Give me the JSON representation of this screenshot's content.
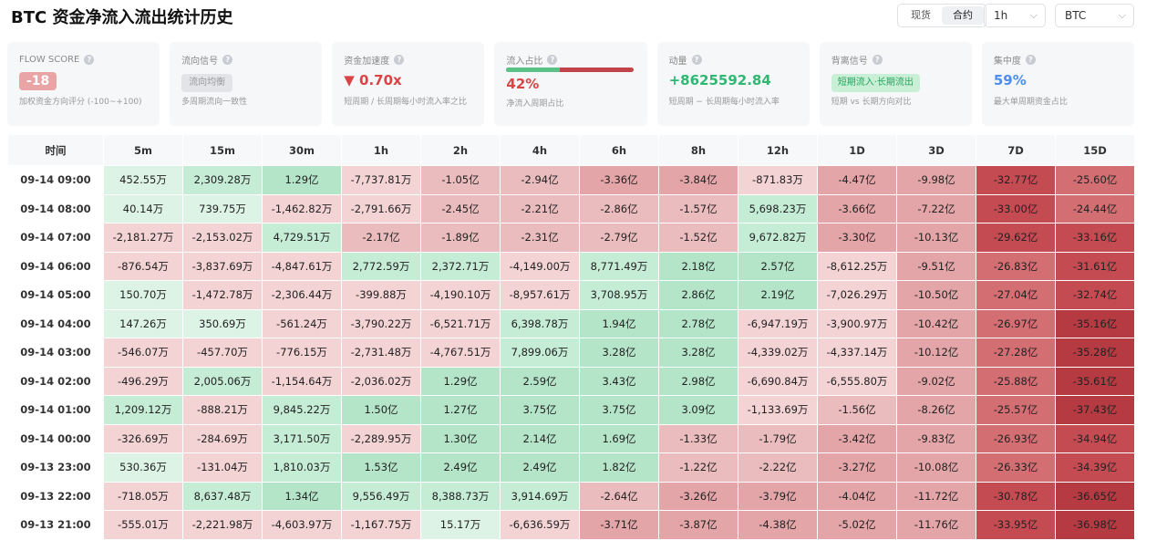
{
  "header": {
    "title": "BTC 资金净流入流出统计历史",
    "market_tabs": [
      "现货",
      "合约"
    ],
    "active_tab": "合约",
    "interval_select": "1h",
    "symbol_select": "BTC"
  },
  "cards": {
    "flow_score": {
      "label": "FLOW SCORE",
      "value": "-18",
      "sub": "加权资金方向评分 (-100~+100)"
    },
    "flow_signal": {
      "label": "流向信号",
      "value": "流向均衡",
      "sub": "多周期流向一致性"
    },
    "acceleration": {
      "label": "资金加速度",
      "value": "▼ 0.70x",
      "sub": "短周期 / 长周期每小时流入率之比"
    },
    "inflow_ratio": {
      "label": "流入占比",
      "value": "42%",
      "ratio": 0.42,
      "sub": "净流入周期占比"
    },
    "momentum": {
      "label": "动量",
      "value": "+8625592.84",
      "sub": "短周期 − 长周期每小时流入率"
    },
    "divergence": {
      "label": "背离信号",
      "value": "短期流入·长期流出",
      "sub": "短期 vs 长期方向对比"
    },
    "concentration": {
      "label": "集中度",
      "value": "59%",
      "sub": "最大单周期资金占比"
    }
  },
  "colors": {
    "green_scale": [
      "#ddf3e6",
      "#c5ecd5",
      "#b4e5c8"
    ],
    "red_scale": [
      "#f3d3d4",
      "#ebbcbe",
      "#e4a5a8",
      "#d36e73",
      "#c54b52",
      "#b63a41"
    ],
    "accent_red": "#d94545",
    "accent_green": "#2eb872",
    "accent_blue": "#4d8df0"
  },
  "table": {
    "columns": [
      "时间",
      "5m",
      "15m",
      "30m",
      "1h",
      "2h",
      "4h",
      "6h",
      "8h",
      "12h",
      "1D",
      "3D",
      "7D",
      "15D"
    ],
    "rows": [
      [
        "09-14 09:00",
        "452.55万",
        "2,309.28万",
        "1.29亿",
        "-7,737.81万",
        "-1.05亿",
        "-2.94亿",
        "-3.36亿",
        "-3.84亿",
        "-871.83万",
        "-4.47亿",
        "-9.98亿",
        "-32.77亿",
        "-25.60亿"
      ],
      [
        "09-14 08:00",
        "40.14万",
        "739.75万",
        "-1,462.82万",
        "-2,791.66万",
        "-2.45亿",
        "-2.21亿",
        "-2.86亿",
        "-1.57亿",
        "5,698.23万",
        "-3.66亿",
        "-7.22亿",
        "-33.00亿",
        "-24.44亿"
      ],
      [
        "09-14 07:00",
        "-2,181.27万",
        "-2,153.02万",
        "4,729.51万",
        "-2.17亿",
        "-1.89亿",
        "-2.31亿",
        "-2.79亿",
        "-1.52亿",
        "9,672.82万",
        "-3.30亿",
        "-10.13亿",
        "-29.62亿",
        "-33.16亿"
      ],
      [
        "09-14 06:00",
        "-876.54万",
        "-3,837.69万",
        "-4,847.61万",
        "2,772.59万",
        "2,372.71万",
        "-4,149.00万",
        "8,771.49万",
        "2.18亿",
        "2.57亿",
        "-8,612.25万",
        "-9.51亿",
        "-26.83亿",
        "-31.61亿"
      ],
      [
        "09-14 05:00",
        "150.70万",
        "-1,472.78万",
        "-2,306.44万",
        "-399.88万",
        "-4,190.10万",
        "-8,957.61万",
        "3,708.95万",
        "2.86亿",
        "2.19亿",
        "-7,026.29万",
        "-10.50亿",
        "-27.04亿",
        "-32.74亿"
      ],
      [
        "09-14 04:00",
        "147.26万",
        "350.69万",
        "-561.24万",
        "-3,790.22万",
        "-6,521.71万",
        "6,398.78万",
        "1.94亿",
        "2.78亿",
        "-6,947.19万",
        "-3,900.97万",
        "-10.42亿",
        "-26.97亿",
        "-35.16亿"
      ],
      [
        "09-14 03:00",
        "-546.07万",
        "-457.70万",
        "-776.15万",
        "-2,731.48万",
        "-4,767.51万",
        "7,899.06万",
        "3.28亿",
        "3.28亿",
        "-4,339.02万",
        "-4,337.14万",
        "-10.12亿",
        "-27.28亿",
        "-35.28亿"
      ],
      [
        "09-14 02:00",
        "-496.29万",
        "2,005.06万",
        "-1,154.64万",
        "-2,036.02万",
        "1.29亿",
        "2.59亿",
        "3.43亿",
        "2.98亿",
        "-6,690.84万",
        "-6,555.80万",
        "-9.02亿",
        "-25.88亿",
        "-35.61亿"
      ],
      [
        "09-14 01:00",
        "1,209.12万",
        "-888.21万",
        "9,845.22万",
        "1.50亿",
        "1.27亿",
        "3.75亿",
        "3.75亿",
        "3.09亿",
        "-1,133.69万",
        "-1.56亿",
        "-8.26亿",
        "-25.57亿",
        "-37.43亿"
      ],
      [
        "09-14 00:00",
        "-326.69万",
        "-284.69万",
        "3,171.50万",
        "-2,289.95万",
        "1.30亿",
        "2.14亿",
        "1.69亿",
        "-1.33亿",
        "-1.79亿",
        "-3.42亿",
        "-9.83亿",
        "-26.93亿",
        "-34.94亿"
      ],
      [
        "09-13 23:00",
        "530.36万",
        "-131.04万",
        "1,810.03万",
        "1.53亿",
        "2.49亿",
        "2.49亿",
        "1.82亿",
        "-1.22亿",
        "-2.22亿",
        "-3.27亿",
        "-10.08亿",
        "-26.33亿",
        "-34.39亿"
      ],
      [
        "09-13 22:00",
        "-718.05万",
        "8,637.48万",
        "1.34亿",
        "9,556.49万",
        "8,388.73万",
        "3,914.69万",
        "-2.64亿",
        "-3.26亿",
        "-3.79亿",
        "-4.04亿",
        "-11.72亿",
        "-30.78亿",
        "-36.65亿"
      ],
      [
        "09-13 21:00",
        "-555.01万",
        "-2,221.98万",
        "-4,603.97万",
        "-1,167.75万",
        "15.17万",
        "-6,636.59万",
        "-3.71亿",
        "-3.87亿",
        "-4.38亿",
        "-5.02亿",
        "-11.76亿",
        "-33.95亿",
        "-36.98亿"
      ]
    ]
  }
}
